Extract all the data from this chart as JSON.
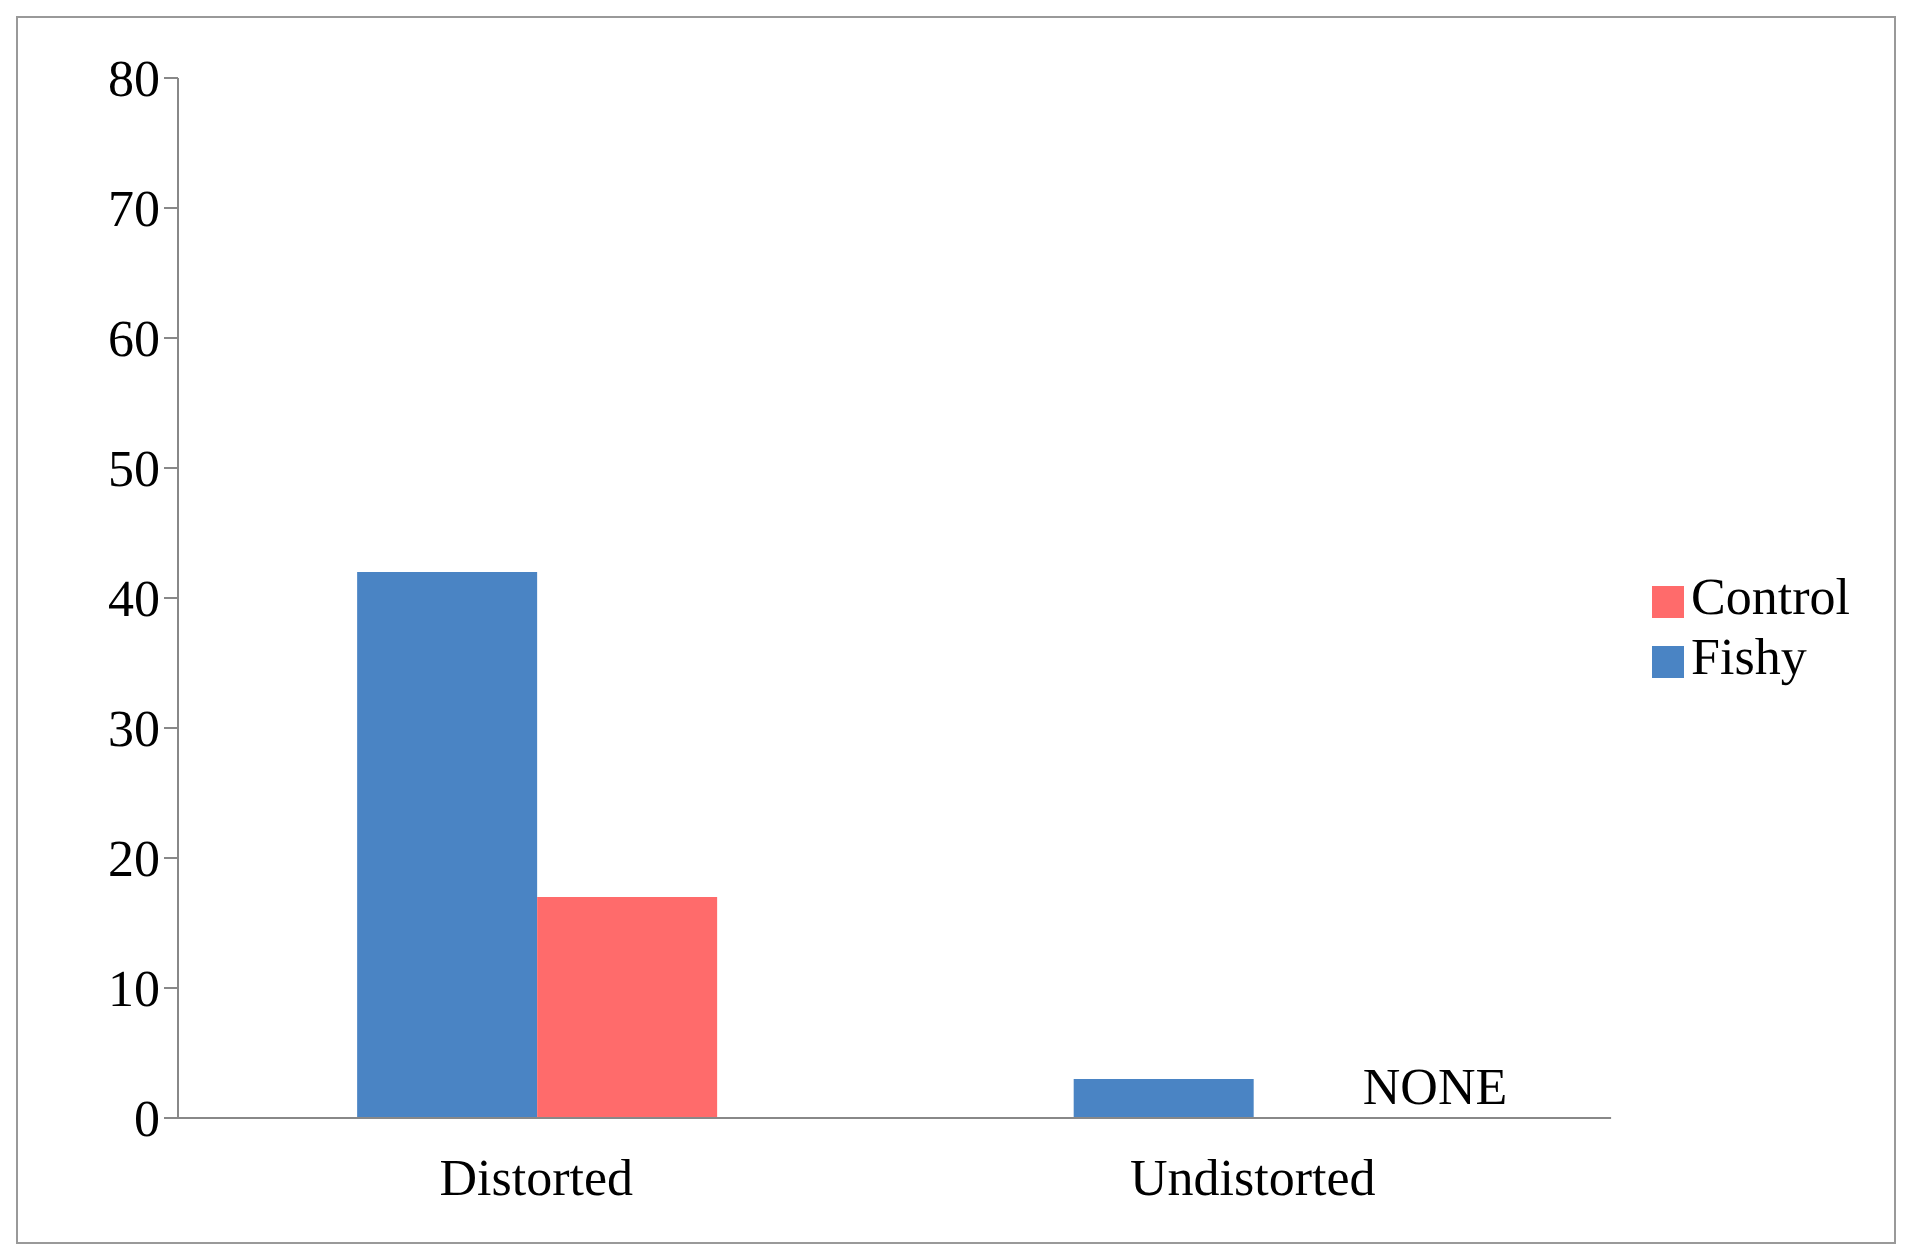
{
  "chart_data": {
    "type": "bar",
    "categories": [
      "Distorted",
      "Undistorted"
    ],
    "series": [
      {
        "name": "Fishy",
        "color": "#4a84c4",
        "values": [
          42,
          3
        ]
      },
      {
        "name": "Control",
        "color": "#ff6b6b",
        "values": [
          17,
          0
        ]
      }
    ],
    "ylim": [
      0,
      80
    ],
    "yticks": [
      0,
      10,
      20,
      30,
      40,
      50,
      60,
      70,
      80
    ],
    "grid": false,
    "legend": "right",
    "annotations": [
      {
        "text": "NONE",
        "x": "Undistorted",
        "y": 0
      }
    ]
  }
}
